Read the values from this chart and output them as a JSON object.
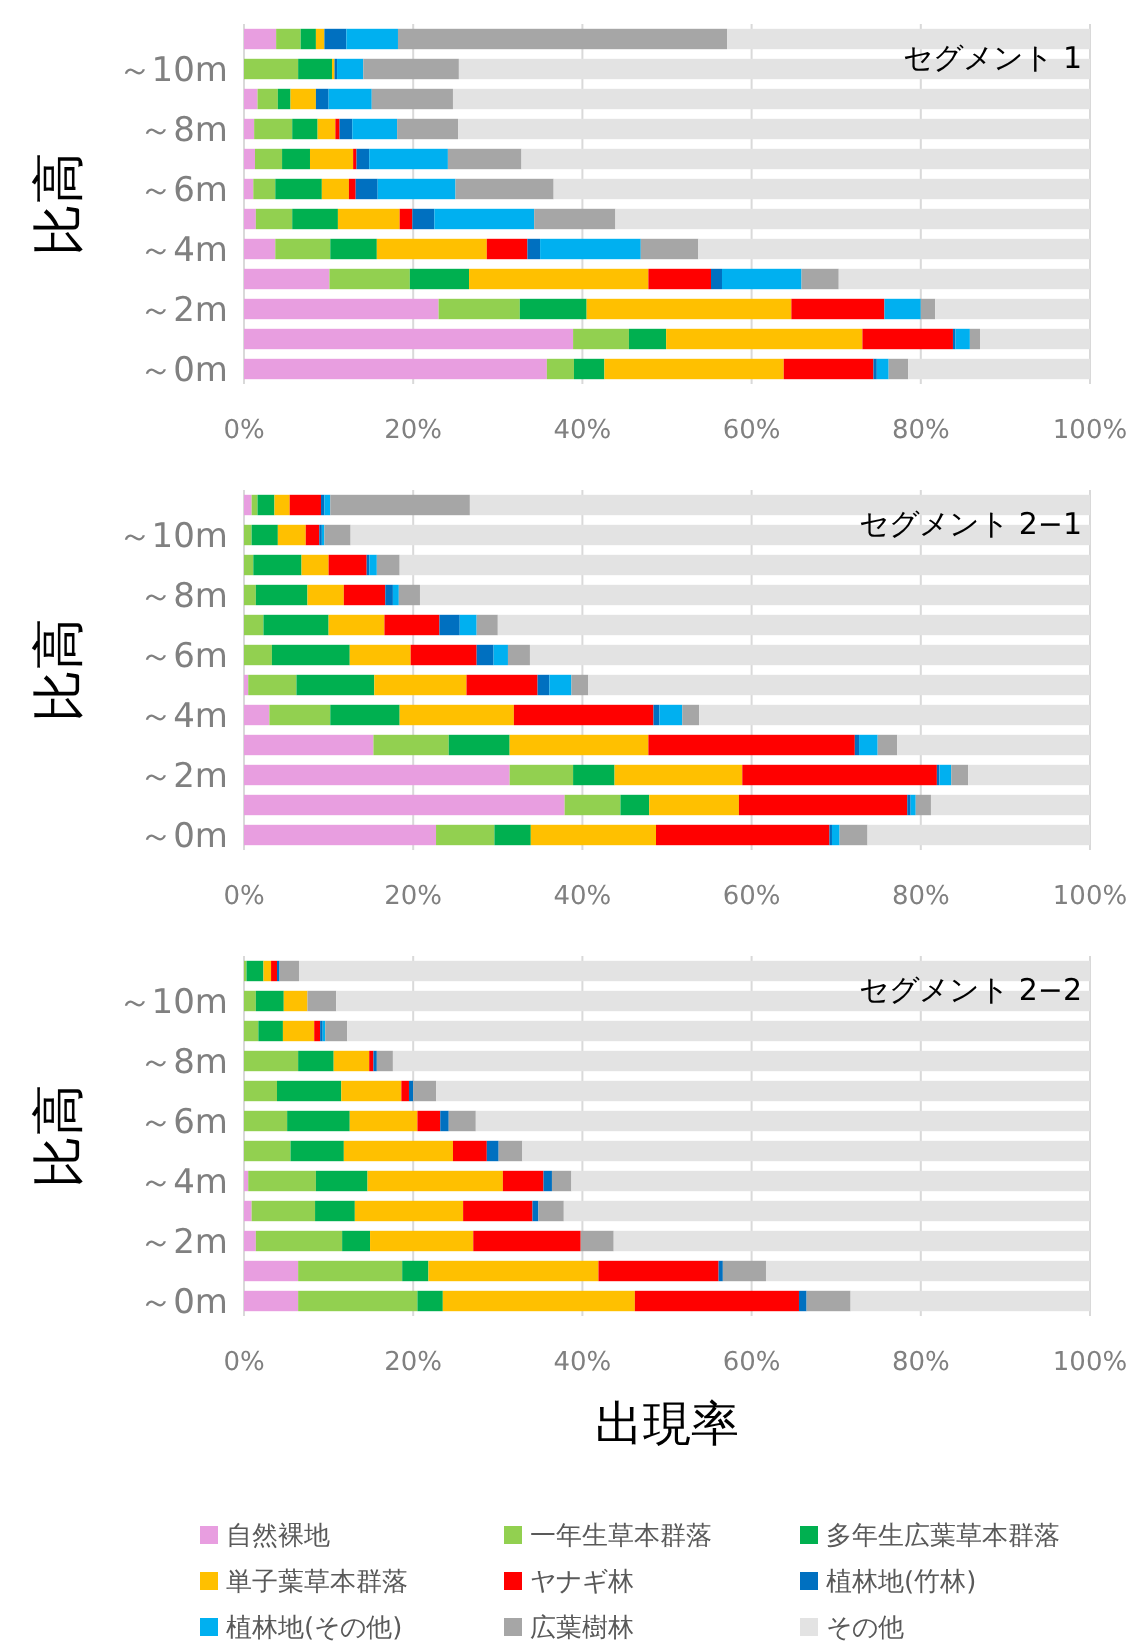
{
  "chart_data": [
    {
      "type": "bar",
      "orientation": "horizontal",
      "stacked": true,
      "ylabel": "比高",
      "annotations": [
        "セグメント 1"
      ],
      "categories": [
        null,
        "～10m",
        null,
        "～8m",
        null,
        "～6m",
        null,
        "～4m",
        null,
        "～2m",
        null,
        "～0m"
      ],
      "xlim": [
        0,
        100
      ],
      "xticks": [
        {
          "value": 0,
          "label": "0%"
        },
        {
          "value": 20,
          "label": "20%"
        },
        {
          "value": 40,
          "label": "40%"
        },
        {
          "value": 60,
          "label": "60%"
        },
        {
          "value": 80,
          "label": "80%"
        },
        {
          "value": 100,
          "label": "100%"
        }
      ],
      "grid": "x",
      "legend": false,
      "series": [
        {
          "color": "#e89ee0",
          "values": [
            3.8,
            0,
            1.6,
            1.2,
            1.3,
            1.1,
            1.4,
            3.7,
            10.1,
            23.0,
            38.9,
            35.8
          ]
        },
        {
          "color": "#92d050",
          "values": [
            2.9,
            6.4,
            2.4,
            4.5,
            3.2,
            2.6,
            4.3,
            6.5,
            9.5,
            9.6,
            6.6,
            3.2
          ]
        },
        {
          "color": "#00b050",
          "values": [
            1.8,
            4.0,
            1.5,
            3.0,
            3.3,
            5.5,
            5.4,
            5.5,
            7.0,
            7.9,
            4.4,
            3.6
          ]
        },
        {
          "color": "#ffc000",
          "values": [
            1.0,
            0.3,
            3.0,
            2.1,
            5.1,
            3.2,
            7.3,
            13.0,
            21.2,
            24.2,
            23.2,
            21.2
          ]
        },
        {
          "color": "#ff0000",
          "values": [
            0,
            0,
            0,
            0.5,
            0.4,
            0.8,
            1.5,
            4.8,
            7.4,
            11.0,
            10.7,
            10.6
          ]
        },
        {
          "color": "#0070c0",
          "values": [
            2.6,
            0.3,
            1.5,
            1.5,
            1.5,
            2.6,
            2.6,
            1.5,
            1.3,
            0,
            0.3,
            0.4
          ]
        },
        {
          "color": "#00b0f0",
          "values": [
            6.1,
            3.1,
            5.1,
            5.3,
            9.3,
            9.2,
            11.8,
            11.9,
            9.4,
            4.3,
            1.7,
            1.4
          ]
        },
        {
          "color": "#a6a6a6",
          "values": [
            38.9,
            11.3,
            9.6,
            7.2,
            8.7,
            11.6,
            9.6,
            6.8,
            4.4,
            1.7,
            1.2,
            2.3
          ]
        },
        {
          "color": "#e3e3e3",
          "values": [
            42.9,
            74.6,
            75.3,
            74.7,
            67.2,
            63.4,
            56.1,
            46.3,
            29.7,
            18.3,
            13.0,
            21.5
          ]
        }
      ]
    },
    {
      "type": "bar",
      "orientation": "horizontal",
      "stacked": true,
      "ylabel": "比高",
      "annotations": [
        "セグメント 2−1"
      ],
      "categories": [
        null,
        "～10m",
        null,
        "～8m",
        null,
        "～6m",
        null,
        "～4m",
        null,
        "～2m",
        null,
        "～0m"
      ],
      "xlim": [
        0,
        100
      ],
      "xticks": [
        {
          "value": 0,
          "label": "0%"
        },
        {
          "value": 20,
          "label": "20%"
        },
        {
          "value": 40,
          "label": "40%"
        },
        {
          "value": 60,
          "label": "60%"
        },
        {
          "value": 80,
          "label": "80%"
        },
        {
          "value": 100,
          "label": "100%"
        }
      ],
      "grid": "x",
      "legend": false,
      "series": [
        {
          "color": "#e89ee0",
          "values": [
            0.9,
            0,
            0,
            0,
            0,
            0,
            0.5,
            3.0,
            15.3,
            31.4,
            37.9,
            22.7
          ]
        },
        {
          "color": "#92d050",
          "values": [
            0.7,
            0.9,
            1.1,
            1.4,
            2.3,
            3.3,
            5.7,
            7.2,
            8.9,
            7.5,
            6.6,
            6.9
          ]
        },
        {
          "color": "#00b050",
          "values": [
            2.0,
            3.1,
            5.7,
            6.1,
            7.7,
            9.2,
            9.2,
            8.2,
            7.2,
            4.9,
            3.4,
            4.3
          ]
        },
        {
          "color": "#ffc000",
          "values": [
            1.8,
            3.3,
            3.2,
            4.3,
            6.6,
            7.2,
            10.9,
            13.5,
            16.4,
            15.1,
            10.6,
            14.8
          ]
        },
        {
          "color": "#ff0000",
          "values": [
            3.7,
            1.6,
            4.5,
            4.9,
            6.5,
            7.8,
            8.4,
            16.5,
            24.4,
            23.0,
            19.9,
            20.5
          ]
        },
        {
          "color": "#0070c0",
          "values": [
            0.4,
            0.3,
            0.3,
            0.9,
            2.4,
            2.0,
            1.4,
            0.7,
            0.5,
            0.3,
            0.4,
            0.3
          ]
        },
        {
          "color": "#00b0f0",
          "values": [
            0.7,
            0.3,
            0.9,
            0.7,
            2.0,
            1.7,
            2.6,
            2.7,
            2.2,
            1.4,
            0.6,
            0.9
          ]
        },
        {
          "color": "#a6a6a6",
          "values": [
            16.5,
            3.1,
            2.7,
            2.5,
            2.5,
            2.6,
            2.0,
            2.0,
            2.3,
            2.0,
            1.8,
            3.3
          ]
        },
        {
          "color": "#e3e3e3",
          "values": [
            73.3,
            87.4,
            81.6,
            79.2,
            70.0,
            66.2,
            59.3,
            46.2,
            22.8,
            14.4,
            18.8,
            26.3
          ]
        }
      ]
    },
    {
      "type": "bar",
      "orientation": "horizontal",
      "stacked": true,
      "ylabel": "比高",
      "xlabel": "出現率",
      "annotations": [
        "セグメント 2−2"
      ],
      "categories": [
        null,
        "～10m",
        null,
        "～8m",
        null,
        "～6m",
        null,
        "～4m",
        null,
        "～2m",
        null,
        "～0m"
      ],
      "xlim": [
        0,
        100
      ],
      "xticks": [
        {
          "value": 0,
          "label": "0%"
        },
        {
          "value": 20,
          "label": "20%"
        },
        {
          "value": 40,
          "label": "40%"
        },
        {
          "value": 60,
          "label": "60%"
        },
        {
          "value": 80,
          "label": "80%"
        },
        {
          "value": 100,
          "label": "100%"
        }
      ],
      "grid": "x",
      "legend": "bottom",
      "series": [
        {
          "name": "自然裸地",
          "color": "#e89ee0",
          "values": [
            0,
            0,
            0,
            0,
            0,
            0,
            0,
            0.5,
            0.9,
            1.4,
            6.4,
            6.4
          ]
        },
        {
          "name": "一年生草本群落",
          "color": "#92d050",
          "values": [
            0.3,
            1.4,
            1.7,
            6.4,
            3.9,
            5.1,
            5.5,
            8.0,
            7.5,
            10.2,
            12.3,
            14.1
          ]
        },
        {
          "name": "多年生広葉草本群落",
          "color": "#00b050",
          "values": [
            2.0,
            3.3,
            2.9,
            4.2,
            7.6,
            7.4,
            6.3,
            6.1,
            4.7,
            3.3,
            3.1,
            3.0
          ]
        },
        {
          "name": "単子葉草本群落",
          "color": "#ffc000",
          "values": [
            0.9,
            2.8,
            3.7,
            4.2,
            7.1,
            8.0,
            12.9,
            16.0,
            12.8,
            12.2,
            20.1,
            22.7
          ]
        },
        {
          "name": "ヤナギ林",
          "color": "#ff0000",
          "values": [
            0.7,
            0,
            0.7,
            0.5,
            0.9,
            2.7,
            4.0,
            4.8,
            8.2,
            12.7,
            14.2,
            19.4
          ]
        },
        {
          "name": "植林地(竹林)",
          "color": "#0070c0",
          "values": [
            0.3,
            0,
            0.3,
            0.4,
            0.5,
            1.0,
            1.4,
            1.0,
            0.7,
            0,
            0.5,
            0.9
          ]
        },
        {
          "name": "植林地(その他)",
          "color": "#00b0f0",
          "values": [
            0,
            0,
            0.3,
            0,
            0,
            0,
            0,
            0,
            0,
            0,
            0,
            0
          ]
        },
        {
          "name": "広葉樹林",
          "color": "#a6a6a6",
          "values": [
            2.3,
            3.4,
            2.6,
            1.9,
            2.7,
            3.2,
            2.8,
            2.3,
            3.0,
            3.9,
            5.1,
            5.2
          ]
        },
        {
          "name": "その他",
          "color": "#e3e3e3",
          "values": [
            93.5,
            89.1,
            87.8,
            82.4,
            77.3,
            72.6,
            67.1,
            61.3,
            62.2,
            56.3,
            38.3,
            28.3
          ]
        }
      ]
    }
  ]
}
